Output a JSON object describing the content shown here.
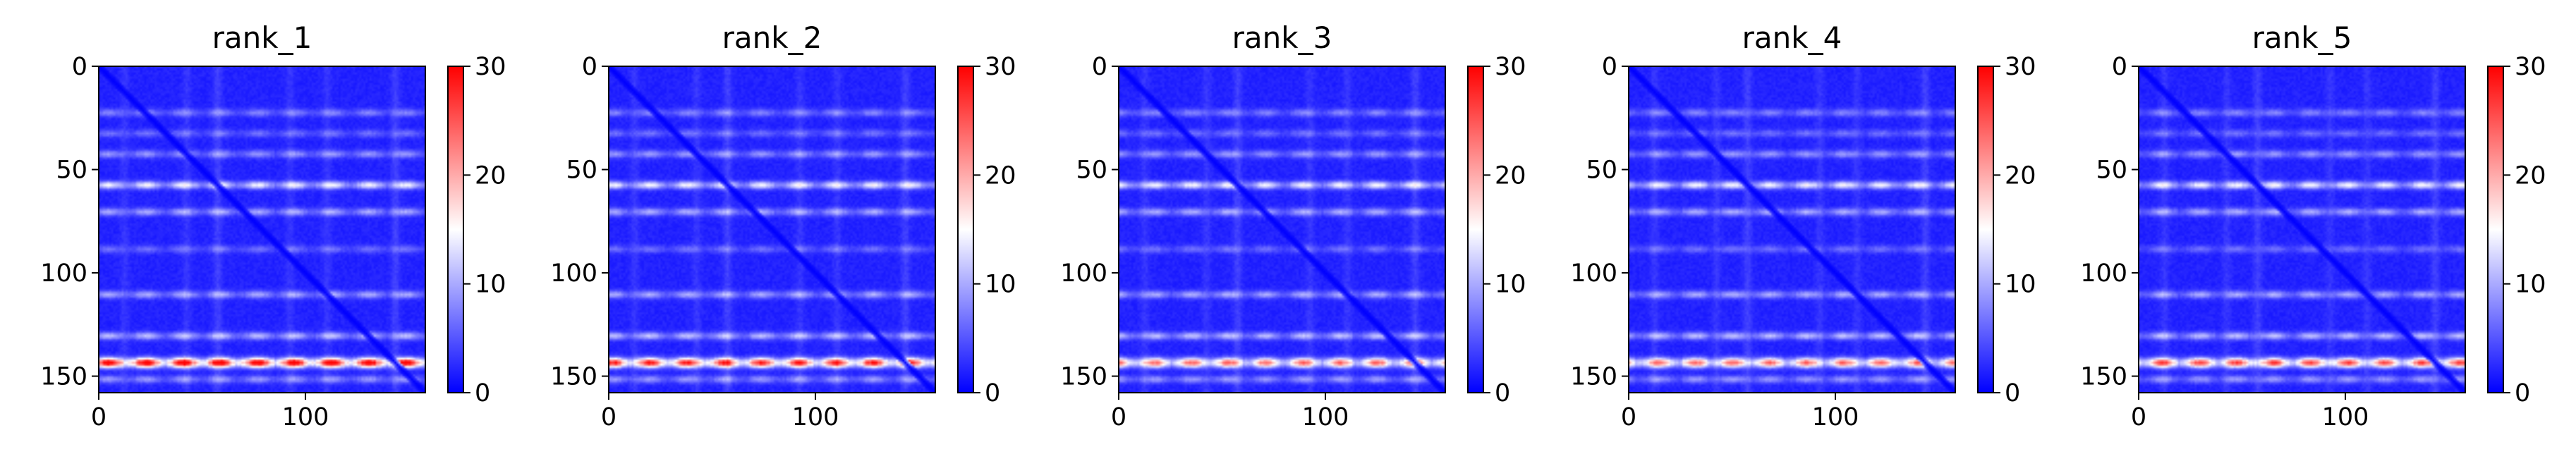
{
  "chart_data": [
    {
      "type": "heatmap",
      "title": "rank_1",
      "rows": 158,
      "cols": 158,
      "xlim": [
        0,
        158
      ],
      "ylim": [
        158,
        0
      ],
      "x_ticks": [
        0,
        100
      ],
      "y_ticks": [
        0,
        50,
        100,
        150
      ],
      "colorbar": {
        "min": 0,
        "max": 30,
        "ticks": [
          0,
          10,
          20,
          30
        ],
        "colormap": "bwr",
        "low_color": "#0000ff",
        "mid_color": "#ffffff",
        "high_color": "#ff0000"
      },
      "background_value": 2,
      "diagonal_value": 0,
      "bands": [
        {
          "row": 22,
          "value": 7
        },
        {
          "row": 32,
          "value": 6
        },
        {
          "row": 42,
          "value": 8
        },
        {
          "row": 57,
          "value": 13
        },
        {
          "row": 70,
          "value": 9
        },
        {
          "row": 88,
          "value": 6
        },
        {
          "row": 110,
          "value": 9
        },
        {
          "row": 130,
          "value": 10
        },
        {
          "row": 143,
          "value": 28
        },
        {
          "row": 151,
          "value": 8
        }
      ],
      "column_bands": [
        {
          "col": 12,
          "value": 4
        },
        {
          "col": 42,
          "value": 4
        },
        {
          "col": 57,
          "value": 5
        },
        {
          "col": 92,
          "value": 4
        },
        {
          "col": 110,
          "value": 4
        },
        {
          "col": 143,
          "value": 5
        }
      ]
    },
    {
      "type": "heatmap",
      "title": "rank_2",
      "rows": 158,
      "cols": 158,
      "xlim": [
        0,
        158
      ],
      "ylim": [
        158,
        0
      ],
      "x_ticks": [
        0,
        100
      ],
      "y_ticks": [
        0,
        50,
        100,
        150
      ],
      "colorbar": {
        "min": 0,
        "max": 30,
        "ticks": [
          0,
          10,
          20,
          30
        ],
        "colormap": "bwr",
        "low_color": "#0000ff",
        "mid_color": "#ffffff",
        "high_color": "#ff0000"
      },
      "background_value": 2,
      "diagonal_value": 0,
      "bands": [
        {
          "row": 22,
          "value": 7
        },
        {
          "row": 32,
          "value": 6
        },
        {
          "row": 42,
          "value": 8
        },
        {
          "row": 57,
          "value": 13
        },
        {
          "row": 70,
          "value": 9
        },
        {
          "row": 88,
          "value": 6
        },
        {
          "row": 110,
          "value": 9
        },
        {
          "row": 130,
          "value": 10
        },
        {
          "row": 143,
          "value": 25
        },
        {
          "row": 151,
          "value": 8
        }
      ],
      "column_bands": [
        {
          "col": 12,
          "value": 4
        },
        {
          "col": 42,
          "value": 4
        },
        {
          "col": 57,
          "value": 5
        },
        {
          "col": 92,
          "value": 4
        },
        {
          "col": 110,
          "value": 4
        },
        {
          "col": 143,
          "value": 5
        }
      ]
    },
    {
      "type": "heatmap",
      "title": "rank_3",
      "rows": 158,
      "cols": 158,
      "xlim": [
        0,
        158
      ],
      "ylim": [
        158,
        0
      ],
      "x_ticks": [
        0,
        100
      ],
      "y_ticks": [
        0,
        50,
        100,
        150
      ],
      "colorbar": {
        "min": 0,
        "max": 30,
        "ticks": [
          0,
          10,
          20,
          30
        ],
        "colormap": "bwr",
        "low_color": "#0000ff",
        "mid_color": "#ffffff",
        "high_color": "#ff0000"
      },
      "background_value": 2,
      "diagonal_value": 0,
      "bands": [
        {
          "row": 22,
          "value": 7
        },
        {
          "row": 32,
          "value": 6
        },
        {
          "row": 42,
          "value": 8
        },
        {
          "row": 57,
          "value": 13
        },
        {
          "row": 70,
          "value": 9
        },
        {
          "row": 88,
          "value": 6
        },
        {
          "row": 110,
          "value": 9
        },
        {
          "row": 130,
          "value": 10
        },
        {
          "row": 143,
          "value": 21
        },
        {
          "row": 151,
          "value": 8
        }
      ],
      "column_bands": [
        {
          "col": 12,
          "value": 4
        },
        {
          "col": 42,
          "value": 4
        },
        {
          "col": 57,
          "value": 5
        },
        {
          "col": 92,
          "value": 4
        },
        {
          "col": 110,
          "value": 4
        },
        {
          "col": 143,
          "value": 5
        }
      ]
    },
    {
      "type": "heatmap",
      "title": "rank_4",
      "rows": 158,
      "cols": 158,
      "xlim": [
        0,
        158
      ],
      "ylim": [
        158,
        0
      ],
      "x_ticks": [
        0,
        100
      ],
      "y_ticks": [
        0,
        50,
        100,
        150
      ],
      "colorbar": {
        "min": 0,
        "max": 30,
        "ticks": [
          0,
          10,
          20,
          30
        ],
        "colormap": "bwr",
        "low_color": "#0000ff",
        "mid_color": "#ffffff",
        "high_color": "#ff0000"
      },
      "background_value": 2,
      "diagonal_value": 0,
      "bands": [
        {
          "row": 22,
          "value": 7
        },
        {
          "row": 32,
          "value": 6
        },
        {
          "row": 42,
          "value": 8
        },
        {
          "row": 57,
          "value": 13
        },
        {
          "row": 70,
          "value": 9
        },
        {
          "row": 88,
          "value": 6
        },
        {
          "row": 110,
          "value": 9
        },
        {
          "row": 130,
          "value": 10
        },
        {
          "row": 143,
          "value": 21
        },
        {
          "row": 151,
          "value": 8
        }
      ],
      "column_bands": [
        {
          "col": 12,
          "value": 4
        },
        {
          "col": 42,
          "value": 4
        },
        {
          "col": 57,
          "value": 5
        },
        {
          "col": 92,
          "value": 4
        },
        {
          "col": 110,
          "value": 4
        },
        {
          "col": 143,
          "value": 5
        }
      ]
    },
    {
      "type": "heatmap",
      "title": "rank_5",
      "rows": 158,
      "cols": 158,
      "xlim": [
        0,
        158
      ],
      "ylim": [
        158,
        0
      ],
      "x_ticks": [
        0,
        100
      ],
      "y_ticks": [
        0,
        50,
        100,
        150
      ],
      "colorbar": {
        "min": 0,
        "max": 30,
        "ticks": [
          0,
          10,
          20,
          30
        ],
        "colormap": "bwr",
        "low_color": "#0000ff",
        "mid_color": "#ffffff",
        "high_color": "#ff0000"
      },
      "background_value": 2,
      "diagonal_value": 0,
      "bands": [
        {
          "row": 22,
          "value": 7
        },
        {
          "row": 32,
          "value": 6
        },
        {
          "row": 42,
          "value": 8
        },
        {
          "row": 57,
          "value": 13
        },
        {
          "row": 70,
          "value": 9
        },
        {
          "row": 88,
          "value": 6
        },
        {
          "row": 110,
          "value": 9
        },
        {
          "row": 130,
          "value": 10
        },
        {
          "row": 143,
          "value": 23
        },
        {
          "row": 151,
          "value": 8
        }
      ],
      "column_bands": [
        {
          "col": 12,
          "value": 4
        },
        {
          "col": 42,
          "value": 4
        },
        {
          "col": 57,
          "value": 5
        },
        {
          "col": 92,
          "value": 4
        },
        {
          "col": 110,
          "value": 4
        },
        {
          "col": 143,
          "value": 5
        }
      ]
    }
  ]
}
